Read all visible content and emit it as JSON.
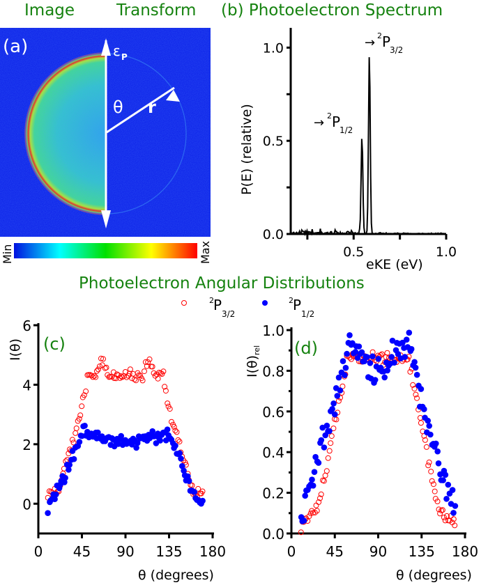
{
  "titles": {
    "image": "Image",
    "transform": "Transform",
    "spectrum": "(b) Photoelectron Spectrum",
    "angular": "Photoelectron Angular Distributions"
  },
  "colors": {
    "title_green": "#15820f",
    "series_p32": "#ff0000",
    "series_p12": "#0000ff",
    "image_bg": "#0a1de8"
  },
  "chart_data": [
    {
      "panel": "(a)",
      "type": "heatmap",
      "title": "Image / Transform",
      "annotations": {
        "polarization": "ε",
        "polarization_sub": "P",
        "angle": "θ",
        "radius": "r"
      },
      "colorbar": {
        "min_label": "Min",
        "max_label": "Max",
        "colormap": [
          "#0000ff",
          "#00ffff",
          "#00e000",
          "#ffff00",
          "#ff0000"
        ]
      }
    },
    {
      "panel": "(b)",
      "type": "line",
      "title": "Photoelectron Spectrum",
      "xlabel": "eKE (eV)",
      "ylabel": "P(E) (relative)",
      "xlim": [
        0.16,
        1.0
      ],
      "ylim": [
        0.0,
        1.05
      ],
      "xticks": [
        "0.5",
        "1.0"
      ],
      "yticks": [
        "0.0",
        "0.5",
        "1.0"
      ],
      "peaks": [
        {
          "label": "²P1/2",
          "state": "2P",
          "sub": "1/2",
          "x": 0.545,
          "y": 0.52
        },
        {
          "label": "²P3/2",
          "state": "2P",
          "sub": "3/2",
          "x": 0.585,
          "y": 0.97
        }
      ],
      "noise_level": 0.03
    },
    {
      "panel": "(c)",
      "type": "scatter",
      "xlabel": "θ (degrees)",
      "ylabel": "I(θ)",
      "xlim": [
        0,
        180
      ],
      "ylim": [
        -1,
        6
      ],
      "xticks": [
        "0",
        "45",
        "90",
        "135",
        "180"
      ],
      "yticks": [
        "0",
        "2",
        "4",
        "6"
      ],
      "series": [
        {
          "name": "2P3/2",
          "marker": "open-circle",
          "profile": {
            "edge": 0.35,
            "shoulder": 4.9,
            "center": 4.2,
            "shoulder_deg": 20,
            "rise_start": 10
          }
        },
        {
          "name": "2P1/2",
          "marker": "filled-circle",
          "profile": {
            "edge": -0.3,
            "shoulder": 2.6,
            "center": 2.0,
            "shoulder_deg": 20,
            "rise_start": 10
          }
        }
      ]
    },
    {
      "panel": "(d)",
      "type": "scatter",
      "xlabel": "θ (degrees)",
      "ylabel": "I(θ)rel",
      "xlim": [
        0,
        180
      ],
      "ylim": [
        0,
        1.0
      ],
      "xticks": [
        "0",
        "45",
        "90",
        "135",
        "180"
      ],
      "yticks": [
        "0.0",
        "0.2",
        "0.4",
        "0.6",
        "0.8",
        "1.0"
      ],
      "series": [
        {
          "name": "2P3/2",
          "marker": "open-circle",
          "profile": {
            "edge": 0.05,
            "peak": 0.93,
            "center": 0.85
          }
        },
        {
          "name": "2P1/2",
          "marker": "filled-circle",
          "profile": {
            "edge": 0.05,
            "peak": 1.0,
            "center": 0.74
          }
        }
      ]
    }
  ],
  "legend": [
    {
      "state": "2",
      "letter": "P",
      "sub": "3/2",
      "marker": "open-circle"
    },
    {
      "state": "2",
      "letter": "P",
      "sub": "1/2",
      "marker": "filled-circle"
    }
  ],
  "panel_labels": {
    "a": "(a)",
    "c": "(c)",
    "d": "(d)"
  }
}
